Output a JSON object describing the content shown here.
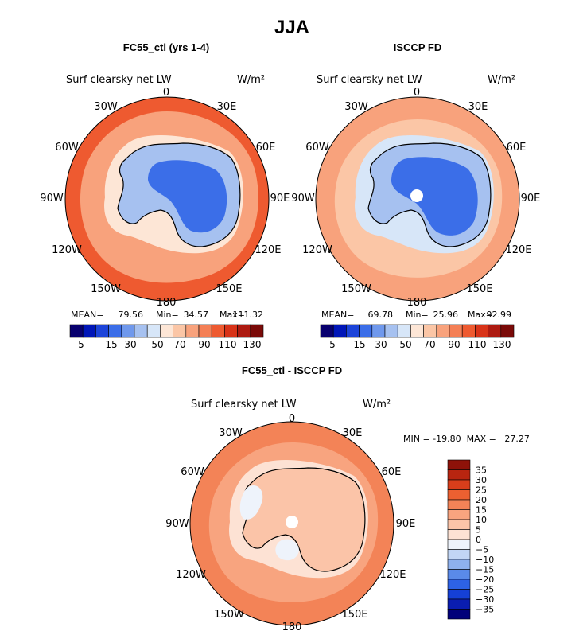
{
  "figure": {
    "title": "JJA"
  },
  "colors": {
    "scale": [
      "#08006e",
      "#0016b8",
      "#1c44d9",
      "#3b6ee8",
      "#6f98ec",
      "#a6c1f0",
      "#d7e6f8",
      "#fde6d6",
      "#fbc6a6",
      "#f8a27c",
      "#f47f55",
      "#ee5a30",
      "#d83318",
      "#ad1a10",
      "#7a0a08"
    ],
    "diff_scale": [
      "#02017a",
      "#0a1db0",
      "#1540d6",
      "#2d62e6",
      "#5a8ae9",
      "#8eb1ee",
      "#c2d6f5",
      "#eef3fb",
      "#fde2d4",
      "#fbc4a8",
      "#f8a47f",
      "#f38357",
      "#ec6031",
      "#d83e1b",
      "#b82510",
      "#8e1209"
    ],
    "coast": "#000000",
    "pole_hole": "#ffffff"
  },
  "chart_data": [
    {
      "type": "heatmap",
      "title": "FC55_ctl (yrs 1-4)",
      "subtitle": "Surf clearsky net LW",
      "units": "W/m²",
      "projection": "south-polar-stereographic",
      "longitude_labels": [
        "0",
        "30E",
        "60E",
        "90E",
        "120E",
        "150E",
        "180",
        "150W",
        "120W",
        "90W",
        "60W",
        "30W"
      ],
      "stats": {
        "mean_label": "MEAN=",
        "mean": "79.56",
        "min_label": "Min=",
        "min": "34.57",
        "max_label": "Max=",
        "max": "111.32"
      },
      "colorbar_ticks": [
        "5",
        "15",
        "30",
        "50",
        "70",
        "90",
        "110",
        "130"
      ],
      "field": {
        "antarctic_interior": 35,
        "coastal_ice": 55,
        "sea_ice": 68,
        "southern_ocean": 88,
        "outer_ocean": 105,
        "pole_hole": false
      }
    },
    {
      "type": "heatmap",
      "title": "ISCCP FD",
      "subtitle": "Surf clearsky net LW",
      "units": "W/m²",
      "projection": "south-polar-stereographic",
      "longitude_labels": [
        "0",
        "30E",
        "60E",
        "90E",
        "120E",
        "150E",
        "180",
        "150W",
        "120W",
        "90W",
        "60W",
        "30W"
      ],
      "stats": {
        "mean_label": "MEAN=",
        "mean": "69.78",
        "min_label": "Min=",
        "min": "25.96",
        "max_label": "Max=",
        "max": "92.99"
      },
      "colorbar_ticks": [
        "5",
        "15",
        "30",
        "50",
        "70",
        "90",
        "110",
        "130"
      ],
      "field": {
        "antarctic_interior": 28,
        "coastal_ice": 50,
        "sea_ice": 64,
        "southern_ocean": 78,
        "outer_ocean": 90,
        "pole_hole": true
      }
    },
    {
      "type": "heatmap",
      "title": "FC55_ctl - ISCCP FD",
      "subtitle": "Surf clearsky net LW",
      "units": "W/m²",
      "projection": "south-polar-stereographic",
      "longitude_labels": [
        "0",
        "30E",
        "60E",
        "90E",
        "120E",
        "150E",
        "180",
        "150W",
        "120W",
        "90W",
        "60W",
        "30W"
      ],
      "stats_line": "MIN = -19.80  MAX =   27.27",
      "colorbar_ticks": [
        "35",
        "30",
        "25",
        "20",
        "15",
        "10",
        "5",
        "0",
        "−5",
        "−10",
        "−15",
        "−20",
        "−25",
        "−30",
        "−35"
      ],
      "field": {
        "antarctic_interior": 8,
        "coastal_ice": -4,
        "sea_ice": 4,
        "southern_ocean": 10,
        "outer_ocean": 18,
        "pole_hole": true
      }
    }
  ]
}
